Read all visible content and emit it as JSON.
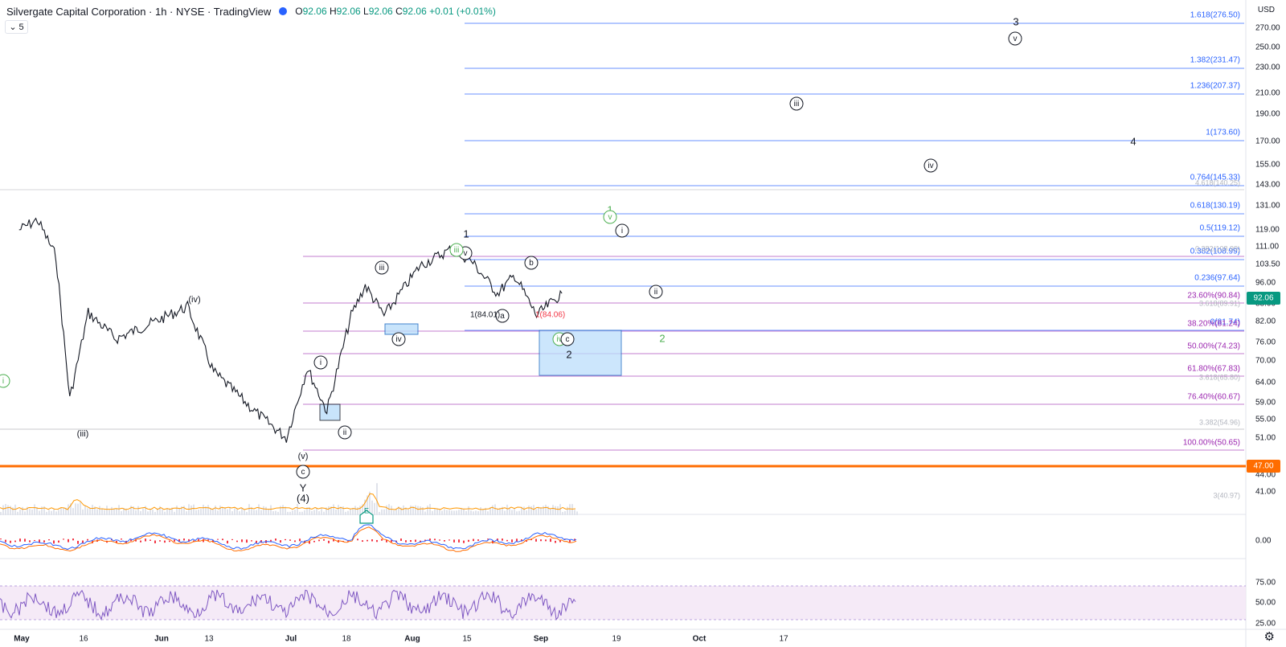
{
  "header": {
    "symbol": "Silvergate Capital Corporation · 1h · NYSE · TradingView",
    "ohlc_o_label": "O",
    "ohlc_o": "92.06",
    "ohlc_h_label": "H",
    "ohlc_h": "92.06",
    "ohlc_l_label": "L",
    "ohlc_l": "92.06",
    "ohlc_c_label": "C",
    "ohlc_c": "92.06",
    "change": "+0.01 (+0.01%)",
    "collapse_count": "5"
  },
  "axis": {
    "currency": "USD",
    "price_ticks": [
      "270.00",
      "250.00",
      "230.00",
      "210.00",
      "190.00",
      "170.00",
      "155.00",
      "143.00",
      "131.00",
      "119.00",
      "111.00",
      "103.50",
      "96.00",
      "88.00",
      "82.00",
      "76.00",
      "70.00",
      "64.00",
      "59.00",
      "55.00",
      "51.00",
      "44.00",
      "41.00"
    ],
    "macd_ticks": [
      "0.00"
    ],
    "rsi_ticks": [
      "75.00",
      "50.00",
      "25.00"
    ],
    "date_ticks": [
      "May",
      "16",
      "Jun",
      "13",
      "Jul",
      "18",
      "Aug",
      "15",
      "Sep",
      "19",
      "Oct",
      "17"
    ],
    "last_price": "92.06",
    "support_price": "47.00"
  },
  "colors": {
    "fib_blue": "#2962ff",
    "fib_purple": "#9c27b0",
    "support": "#ff6d00",
    "green": "#089981",
    "ohlc_green": "#089981",
    "wave_green": "#4caf50",
    "volume": "#ff9800",
    "macd": "#2962ff",
    "signal": "#ff6d00",
    "hist": "#f23645",
    "rsi": "#7e57c2",
    "rsi_band": "#f3e5f5",
    "box": "#bbdefb"
  },
  "fib_blue_labels": [
    "1.618(276.50)",
    "1.382(231.47)",
    "1.236(207.37)",
    "1(173.60)",
    "0.764(145.33)",
    "0.618(130.19)",
    "0.5(119.12)",
    "0.382(108.99)",
    "0.236(97.64)",
    "0(81.74)"
  ],
  "fib_purple_labels": [
    "23.60%(90.84)",
    "38.20%(81.24)",
    "50.00%(74.23)",
    "61.80%(67.83)",
    "76.40%(60.67)",
    "100.00%(50.65)"
  ],
  "faint_labels": [
    "3.618(89.91)",
    "3.618(65.80)",
    "3.382(54.96)",
    "3(40.97)",
    "1(84.01)",
    "1(84.06)",
    "0.382(108.99)",
    "4.618(140.25)"
  ],
  "wave_labels": {
    "iii_small": "(iii)",
    "iv_small": "(iv)",
    "v_small": "(v)",
    "c_circle": "c",
    "Y": "Y",
    "four_paren": "(4)",
    "i_circle": "i",
    "ii_circle": "ii",
    "iii_circle": "iii",
    "iv_circle": "iv",
    "v_circle": "v",
    "one": "1",
    "a_circle": "a",
    "b_circle": "b",
    "c2_circle": "c",
    "two": "2",
    "iii_green": "iii",
    "iv_green": "iv",
    "one_green": "1",
    "v_green": "v",
    "two_green": "2",
    "i_future": "i",
    "ii_future": "ii",
    "iii_future": "iii",
    "iv_future": "iv",
    "v_future": "v",
    "three": "3",
    "four": "4",
    "i_left_green": "i",
    "fib1_black": "1(84.01)",
    "fib1_red": "1(84.06)",
    "e_marker": "E"
  },
  "chart_data": {
    "type": "line",
    "title": "Silvergate Capital Corporation · 1h · NYSE · TradingView",
    "xlabel": "",
    "ylabel": "",
    "ylim": [
      40,
      280
    ],
    "grid": true,
    "legend": "none",
    "price_path": {
      "x_dates": [
        "2022-05-02",
        "2022-05-06",
        "2022-05-10",
        "2022-05-13",
        "2022-05-17",
        "2022-05-23",
        "2022-06-02",
        "2022-06-08",
        "2022-06-14",
        "2022-06-23",
        "2022-06-30",
        "2022-07-06",
        "2022-07-12",
        "2022-07-19",
        "2022-07-22",
        "2022-07-26",
        "2022-08-03",
        "2022-08-11",
        "2022-08-16",
        "2022-08-22",
        "2022-08-26",
        "2022-08-31",
        "2022-09-06"
      ],
      "y": [
        119,
        124,
        107,
        60,
        85,
        77,
        83,
        87,
        67,
        57,
        51,
        68,
        57,
        84,
        95,
        84,
        103,
        110,
        105,
        92,
        99,
        84,
        92
      ]
    },
    "fib_levels_blue": [
      276.5,
      231.47,
      207.37,
      173.6,
      145.33,
      130.19,
      119.12,
      108.99,
      97.64,
      81.74
    ],
    "fib_levels_purple": [
      90.84,
      81.24,
      74.23,
      67.83,
      60.67,
      50.65
    ],
    "support_level": 47.0,
    "last_price": 92.06
  }
}
